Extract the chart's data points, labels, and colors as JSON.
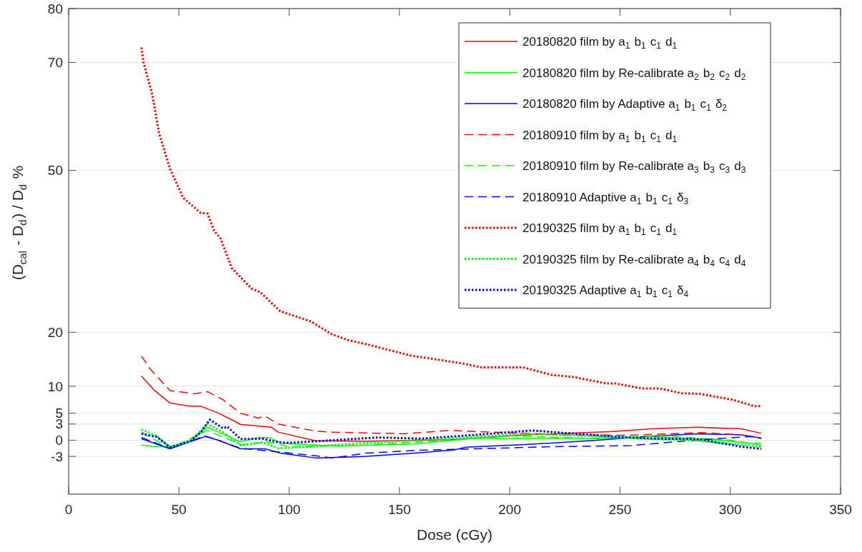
{
  "chart_data": {
    "type": "line",
    "xlabel": "Dose (cGy)",
    "ylabel": "(D$_{cal}$ - D$_{d}$) / D$_{d}$  %",
    "xlim": [
      0,
      350
    ],
    "ylim": [
      -10,
      80
    ],
    "xticks": [
      0,
      50,
      100,
      150,
      200,
      250,
      300,
      350
    ],
    "yticks": [
      -3,
      0,
      3,
      5,
      10,
      20,
      50,
      70,
      80
    ],
    "grid": "y",
    "legend": "top right",
    "series": [
      {
        "name": "20180820 film by a$_{1}$ b$_{1}$ c$_{1}$ d$_{1}$",
        "color": "#ff0000",
        "line_style": "solid",
        "x": [
          33,
          39,
          46,
          55,
          60,
          68,
          73,
          78,
          87,
          92,
          95,
          112,
          135,
          157,
          173,
          207,
          247,
          264,
          285,
          305,
          314
        ],
        "values": [
          11.9,
          9.2,
          6.9,
          6.3,
          6.3,
          5,
          4,
          2.9,
          2.6,
          2.4,
          1.5,
          -0.1,
          -0.2,
          0,
          0.1,
          1,
          1.6,
          2.1,
          2.4,
          2.1,
          1.3
        ]
      },
      {
        "name": "20180820 film by Re-calibrate a$_{2}$ b$_{2}$ c$_{2}$ d$_{2}$",
        "color": "#00ff00",
        "line_style": "solid",
        "x": [
          33,
          40,
          46,
          55,
          63,
          68,
          78,
          86,
          91,
          97,
          123,
          157,
          185,
          207,
          241,
          264,
          298,
          310,
          314
        ],
        "values": [
          -0.9,
          -1.2,
          -1.2,
          -0.3,
          2.4,
          1.5,
          -0.3,
          0.5,
          0.5,
          -0.6,
          -1.1,
          -0.7,
          0.4,
          0.3,
          0.4,
          0.7,
          -0.1,
          -0.6,
          -0.5
        ]
      },
      {
        "name": "20180820 film by Adaptive  a$_{1}$ b$_{1}$ c$_{1}$ δ$_{2}$",
        "color": "#0000ff",
        "line_style": "solid",
        "x": [
          33,
          46,
          55,
          62,
          68,
          78,
          89,
          96,
          112,
          135,
          157,
          175,
          180,
          207,
          236,
          262,
          285,
          305,
          314
        ],
        "values": [
          0.3,
          -1.6,
          -0.3,
          0.7,
          0,
          -1.6,
          -1.6,
          -2.4,
          -3.3,
          -3,
          -2.4,
          -1.8,
          -1.3,
          -0.8,
          -0.1,
          0.7,
          1.2,
          1,
          0.4
        ]
      },
      {
        "name": "20180910 film by a$_{1}$ b$_{1}$ c$_{1}$ d$_{1}$",
        "color": "#ff0000",
        "line_style": "dashed",
        "x": [
          33,
          37,
          46,
          50,
          57,
          63,
          70,
          78,
          86,
          89,
          95,
          112,
          118,
          152,
          173,
          225,
          253,
          287,
          305,
          314
        ],
        "values": [
          15.6,
          13.2,
          9.2,
          9,
          8.6,
          9,
          7.5,
          5,
          4.1,
          4.5,
          3,
          1.7,
          1.5,
          1.2,
          1.8,
          1,
          0.9,
          1.4,
          1,
          0.4
        ]
      },
      {
        "name": "20180910 film by Re-calibrate a$_{3}$ b$_{3}$ c$_{3}$ d$_{3}$",
        "color": "#00ff00",
        "line_style": "dashed",
        "x": [
          33,
          46,
          63,
          78,
          90,
          100,
          130,
          160,
          200,
          240,
          270,
          300,
          314
        ],
        "values": [
          1.5,
          -1.5,
          1.8,
          -0.8,
          -0.3,
          -1.2,
          -1,
          -0.3,
          0.8,
          0.3,
          0.8,
          0,
          -0.9
        ]
      },
      {
        "name": "20180910 Adaptive  a$_{1}$ b$_{1}$ c$_{1}$ δ$_{3}$",
        "color": "#0000ff",
        "line_style": "dashed",
        "x": [
          33,
          46,
          62,
          78,
          96,
          112,
          120,
          135,
          157,
          219,
          255,
          275,
          287,
          310,
          314
        ],
        "values": [
          0.5,
          -1.5,
          0.8,
          -1.5,
          -2.2,
          -2.9,
          -3.3,
          -2.4,
          -1.9,
          -1.2,
          -1,
          -0.3,
          0.1,
          0.7,
          0.3
        ]
      },
      {
        "name": "20190325 film by a$_{1}$ b$_{1}$ c$_{1}$ d$_{1}$",
        "color": "#ff0000",
        "line_style": "dotted",
        "x": [
          33,
          34,
          38,
          41,
          46,
          52,
          60,
          63,
          66,
          69,
          74,
          78,
          83,
          87,
          96,
          110,
          119,
          127,
          135,
          155,
          179,
          187,
          206,
          219,
          229,
          244,
          248,
          260,
          268,
          278,
          286,
          301,
          311,
          314
        ],
        "values": [
          72.8,
          70,
          64,
          56.9,
          50.3,
          44.9,
          42.1,
          42,
          38.8,
          37.3,
          31.9,
          30.2,
          28.1,
          27.4,
          23.9,
          22,
          19.7,
          18.5,
          17.8,
          15.7,
          14.2,
          13.5,
          13.5,
          12.1,
          11.7,
          10.5,
          10.5,
          9.6,
          9.6,
          8.7,
          8.6,
          7.5,
          6.3,
          6.3
        ]
      },
      {
        "name": "20190325 film by Re-calibrate a$_{4}$ b$_{4}$ c$_{4}$ d$_{4}$",
        "color": "#00ff00",
        "line_style": "dotted",
        "x": [
          33,
          40,
          46,
          55,
          63,
          70,
          78,
          88,
          95,
          110,
          135,
          160,
          185,
          207,
          235,
          260,
          285,
          305,
          314
        ],
        "values": [
          2,
          0.8,
          -1.3,
          -0.2,
          3,
          1.5,
          -1,
          -0.4,
          -1.5,
          -1.2,
          -0.5,
          0,
          0.6,
          1.2,
          0.8,
          0.3,
          -0.1,
          -0.8,
          -1.2
        ]
      },
      {
        "name": "20190325 Adaptive  a$_{1}$ b$_{1}$ c$_{1}$ δ$_{4}$",
        "color": "#0000ff",
        "line_style": "dotted",
        "x": [
          33,
          40,
          46,
          55,
          60,
          64,
          70,
          72,
          78,
          88,
          95,
          100,
          120,
          140,
          160,
          185,
          210,
          230,
          250,
          265,
          285,
          305,
          314
        ],
        "values": [
          1.2,
          0.6,
          -1.3,
          -0.2,
          1.5,
          3.8,
          2.2,
          2.5,
          0.2,
          0.3,
          -0.4,
          -0.5,
          0,
          0.5,
          0.3,
          1,
          1.8,
          1.2,
          0.6,
          0.3,
          0.2,
          -1.2,
          -1.6
        ]
      }
    ]
  }
}
